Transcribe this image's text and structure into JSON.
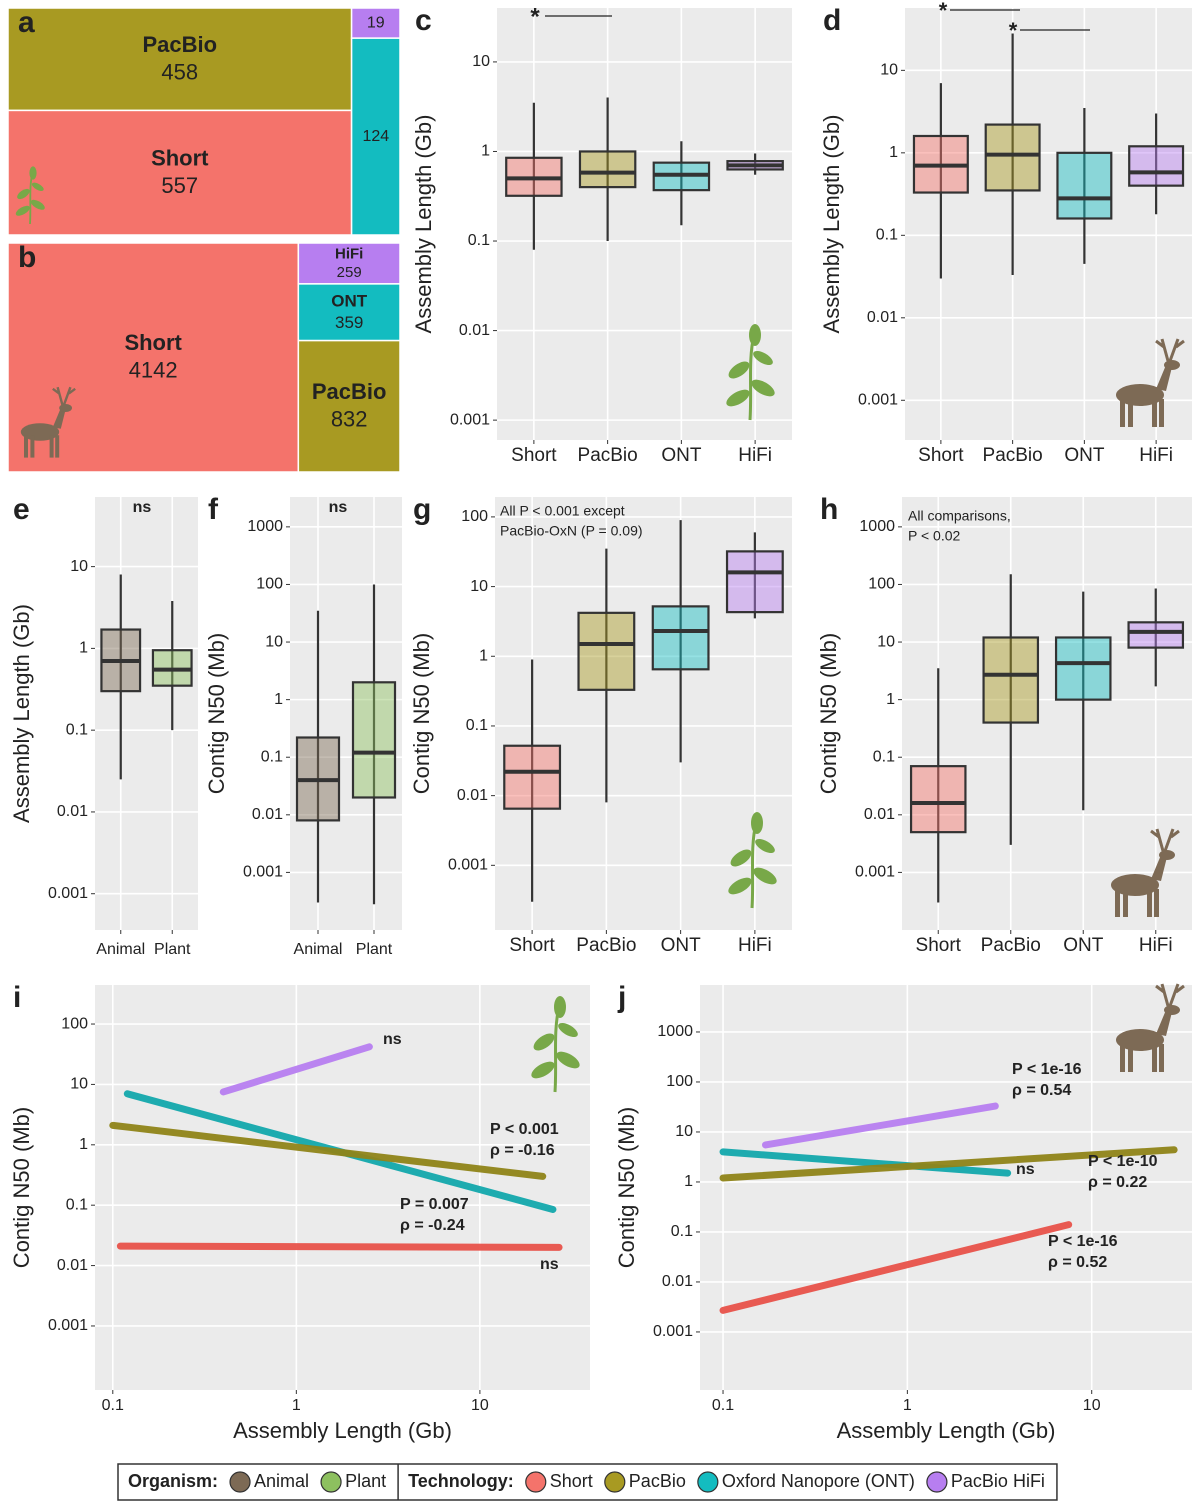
{
  "chart_data": [
    {
      "type": "treemap",
      "label": "a",
      "items": [
        {
          "name": "PacBio",
          "value": 458,
          "color": "#a89a22"
        },
        {
          "name": "Short",
          "value": 557,
          "color": "#f4736b"
        },
        {
          "name": null,
          "value": 19,
          "color": "#b77ef0"
        },
        {
          "name": null,
          "value": 124,
          "color": "#13bcc0"
        }
      ]
    },
    {
      "type": "treemap",
      "label": "b",
      "items": [
        {
          "name": "Short",
          "value": 4142,
          "color": "#f4736b"
        },
        {
          "name": "HiFi",
          "value": 259,
          "color": "#b77ef0"
        },
        {
          "name": "ONT",
          "value": 359,
          "color": "#13bcc0"
        },
        {
          "name": "PacBio",
          "value": 832,
          "color": "#a89a22"
        }
      ]
    },
    {
      "type": "box",
      "label": "c",
      "y_label": "Assembly Length (Gb)",
      "log_y": true,
      "grid": true,
      "categories": [
        "Short",
        "PacBio",
        "ONT",
        "HiFi"
      ],
      "colors": [
        "#f4736b",
        "#a89a22",
        "#13bcc0",
        "#b77ef0"
      ],
      "boxes": [
        {
          "low": 0.08,
          "q1": 0.32,
          "median": 0.5,
          "q3": 0.85,
          "high": 3.5
        },
        {
          "low": 0.1,
          "q1": 0.4,
          "median": 0.58,
          "q3": 1.0,
          "high": 4
        },
        {
          "low": 0.15,
          "q1": 0.37,
          "median": 0.55,
          "q3": 0.75,
          "high": 1.3
        },
        {
          "low": 0.55,
          "q1": 0.63,
          "median": 0.7,
          "q3": 0.78,
          "high": 0.95
        }
      ],
      "ylim": [
        0.0006,
        40
      ],
      "yticks": [
        0.001,
        0.01,
        0.1,
        1,
        10
      ],
      "annotations": [
        "*"
      ]
    },
    {
      "type": "box",
      "label": "d",
      "y_label": "Assembly Length (Gb)",
      "log_y": true,
      "grid": true,
      "categories": [
        "Short",
        "PacBio",
        "ONT",
        "HiFi"
      ],
      "colors": [
        "#f4736b",
        "#a89a22",
        "#13bcc0",
        "#b77ef0"
      ],
      "boxes": [
        {
          "low": 0.03,
          "q1": 0.33,
          "median": 0.7,
          "q3": 1.6,
          "high": 7
        },
        {
          "low": 0.033,
          "q1": 0.35,
          "median": 0.95,
          "q3": 2.2,
          "high": 28
        },
        {
          "low": 0.045,
          "q1": 0.16,
          "median": 0.28,
          "q3": 1.0,
          "high": 3.5
        },
        {
          "low": 0.18,
          "q1": 0.4,
          "median": 0.58,
          "q3": 1.2,
          "high": 3
        }
      ],
      "ylim": [
        0.00033,
        57
      ],
      "yticks": [
        0.001,
        0.01,
        0.1,
        1,
        10
      ],
      "annotations": [
        "*",
        "*"
      ]
    },
    {
      "type": "box",
      "label": "e",
      "y_label": "Assembly Length (Gb)",
      "log_y": true,
      "grid": true,
      "categories": [
        "Animal",
        "Plant"
      ],
      "colors": [
        "#7d6a55",
        "#8dc05f"
      ],
      "boxes": [
        {
          "low": 0.025,
          "q1": 0.3,
          "median": 0.7,
          "q3": 1.7,
          "high": 8
        },
        {
          "low": 0.1,
          "q1": 0.35,
          "median": 0.55,
          "q3": 0.95,
          "high": 3.8
        }
      ],
      "ylim": [
        0.00036,
        71
      ],
      "yticks": [
        0.001,
        0.01,
        0.1,
        1,
        10
      ],
      "annotations": [
        "ns"
      ]
    },
    {
      "type": "box",
      "label": "f",
      "y_label": "Contig N50 (Mb)",
      "log_y": true,
      "grid": true,
      "categories": [
        "Animal",
        "Plant"
      ],
      "colors": [
        "#7d6a55",
        "#8dc05f"
      ],
      "boxes": [
        {
          "low": 0.0003,
          "q1": 0.008,
          "median": 0.04,
          "q3": 0.22,
          "high": 35
        },
        {
          "low": 0.00028,
          "q1": 0.02,
          "median": 0.12,
          "q3": 2,
          "high": 100
        }
      ],
      "ylim": [
        0.0001,
        3300
      ],
      "yticks": [
        0.001,
        0.01,
        0.1,
        1,
        10,
        100,
        1000
      ],
      "annotations": [
        "ns"
      ]
    },
    {
      "type": "box",
      "label": "g",
      "y_label": "Contig N50 (Mb)",
      "log_y": true,
      "grid": true,
      "categories": [
        "Short",
        "PacBio",
        "ONT",
        "HiFi"
      ],
      "colors": [
        "#f4736b",
        "#a89a22",
        "#13bcc0",
        "#b77ef0"
      ],
      "boxes": [
        {
          "low": 0.0003,
          "q1": 0.0065,
          "median": 0.022,
          "q3": 0.052,
          "high": 0.9
        },
        {
          "low": 0.008,
          "q1": 0.33,
          "median": 1.5,
          "q3": 4.2,
          "high": 35
        },
        {
          "low": 0.03,
          "q1": 0.65,
          "median": 2.3,
          "q3": 5.2,
          "high": 90
        },
        {
          "low": 3.5,
          "q1": 4.3,
          "median": 16,
          "q3": 32,
          "high": 60
        }
      ],
      "ylim": [
        0.000118,
        193
      ],
      "yticks": [
        0.001,
        0.01,
        0.1,
        1,
        10,
        100
      ],
      "annotations": [
        "All P < 0.001 except",
        "PacBio-OxN (P = 0.09)"
      ]
    },
    {
      "type": "box",
      "label": "h",
      "y_label": "Contig N50 (Mb)",
      "log_y": true,
      "grid": true,
      "categories": [
        "Short",
        "PacBio",
        "ONT",
        "HiFi"
      ],
      "colors": [
        "#f4736b",
        "#a89a22",
        "#13bcc0",
        "#b77ef0"
      ],
      "boxes": [
        {
          "low": 0.0003,
          "q1": 0.005,
          "median": 0.016,
          "q3": 0.07,
          "high": 3.5
        },
        {
          "low": 0.003,
          "q1": 0.4,
          "median": 2.7,
          "q3": 12,
          "high": 150
        },
        {
          "low": 0.012,
          "q1": 1,
          "median": 4.3,
          "q3": 12,
          "high": 75
        },
        {
          "low": 1.7,
          "q1": 8,
          "median": 15,
          "q3": 22,
          "high": 85
        }
      ],
      "ylim": [
        0.0001,
        3300
      ],
      "yticks": [
        0.001,
        0.01,
        0.1,
        1,
        10,
        100,
        1000
      ],
      "annotations": [
        "All comparisons,",
        "P < 0.02"
      ]
    },
    {
      "type": "line",
      "label": "i",
      "x_label": "Assembly Length (Gb)",
      "y_label": "Contig N50 (Mb)",
      "log_x": true,
      "log_y": true,
      "grid": true,
      "xlim": [
        0.08,
        39.8
      ],
      "xticks": [
        0.1,
        1,
        10
      ],
      "ylim": [
        8.7e-05,
        443
      ],
      "yticks": [
        0.001,
        0.01,
        0.1,
        1,
        10,
        100
      ],
      "series": [
        {
          "color": "#b77ef0",
          "x": [
            0.4,
            2.5
          ],
          "y": [
            7.5,
            42
          ],
          "annotation": [
            "ns"
          ]
        },
        {
          "color": "#13a8ac",
          "x": [
            0.12,
            25
          ],
          "y": [
            7,
            0.085
          ],
          "annotation": [
            "P = 0.007",
            "ρ = -0.24"
          ]
        },
        {
          "color": "#8f8418",
          "x": [
            0.1,
            22
          ],
          "y": [
            2.1,
            0.3
          ],
          "annotation": [
            "P < 0.001",
            "ρ = -0.16"
          ]
        },
        {
          "color": "#e8524a",
          "x": [
            0.11,
            27
          ],
          "y": [
            0.021,
            0.02
          ],
          "annotation": [
            "ns"
          ]
        }
      ]
    },
    {
      "type": "line",
      "label": "j",
      "x_label": "Assembly Length (Gb)",
      "y_label": "Contig N50 (Mb)",
      "log_x": true,
      "log_y": true,
      "grid": true,
      "xlim": [
        0.075,
        35
      ],
      "xticks": [
        0.1,
        1,
        10
      ],
      "ylim": [
        6.9e-05,
        8700
      ],
      "yticks": [
        0.001,
        0.01,
        0.1,
        1,
        10,
        100,
        1000
      ],
      "series": [
        {
          "color": "#b77ef0",
          "x": [
            0.17,
            3
          ],
          "y": [
            5.5,
            33
          ],
          "annotation": [
            "P < 1e-16",
            "ρ = 0.54"
          ]
        },
        {
          "color": "#13a8ac",
          "x": [
            0.1,
            3.5
          ],
          "y": [
            4,
            1.5
          ],
          "annotation": [
            "ns"
          ]
        },
        {
          "color": "#8f8418",
          "x": [
            0.1,
            28
          ],
          "y": [
            1.2,
            4.4
          ],
          "annotation": [
            "P < 1e-10",
            "ρ = 0.22"
          ]
        },
        {
          "color": "#e8524a",
          "x": [
            0.1,
            7.5
          ],
          "y": [
            0.0027,
            0.14
          ],
          "annotation": [
            "P < 1e-16",
            "ρ = 0.52"
          ]
        }
      ]
    }
  ],
  "legend": {
    "groups": [
      {
        "title": "Organism:",
        "items": [
          {
            "name": "Animal",
            "color": "#7d6a55"
          },
          {
            "name": "Plant",
            "color": "#8dc05f"
          }
        ]
      },
      {
        "title": "Technology:",
        "items": [
          {
            "name": "Short",
            "color": "#f4736b"
          },
          {
            "name": "PacBio",
            "color": "#a89a22"
          },
          {
            "name": "Oxford Nanopore (ONT)",
            "color": "#13bcc0"
          },
          {
            "name": "PacBio HiFi",
            "color": "#b77ef0"
          }
        ]
      }
    ]
  }
}
